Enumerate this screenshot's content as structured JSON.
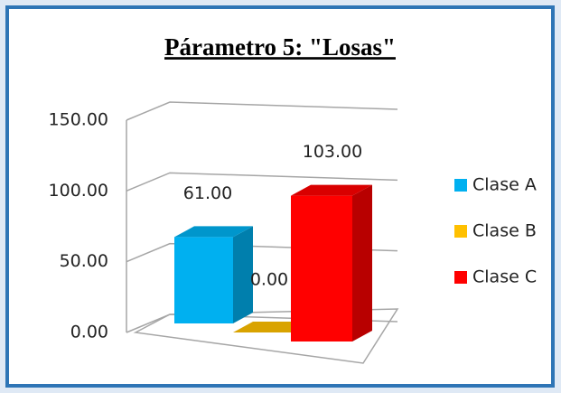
{
  "chart_data": {
    "type": "bar",
    "title": "Párametro 5: \"Losas\"",
    "categories": [
      null
    ],
    "series": [
      {
        "name": "Clase A",
        "color": "#00b0f0",
        "values": [
          61
        ],
        "value_labels": [
          "61.00"
        ]
      },
      {
        "name": "Clase B",
        "color": "#ffc000",
        "values": [
          0
        ],
        "value_labels": [
          "0.00"
        ]
      },
      {
        "name": "Clase C",
        "color": "#ff0000",
        "values": [
          103
        ],
        "value_labels": [
          "103.00"
        ]
      }
    ],
    "ylim": [
      0,
      150
    ],
    "yticks": [
      {
        "value": 0,
        "label": "0.00"
      },
      {
        "value": 50,
        "label": "50.00"
      },
      {
        "value": 100,
        "label": "100.00"
      },
      {
        "value": 150,
        "label": "150.00"
      }
    ],
    "grid": true,
    "legend": "right"
  }
}
